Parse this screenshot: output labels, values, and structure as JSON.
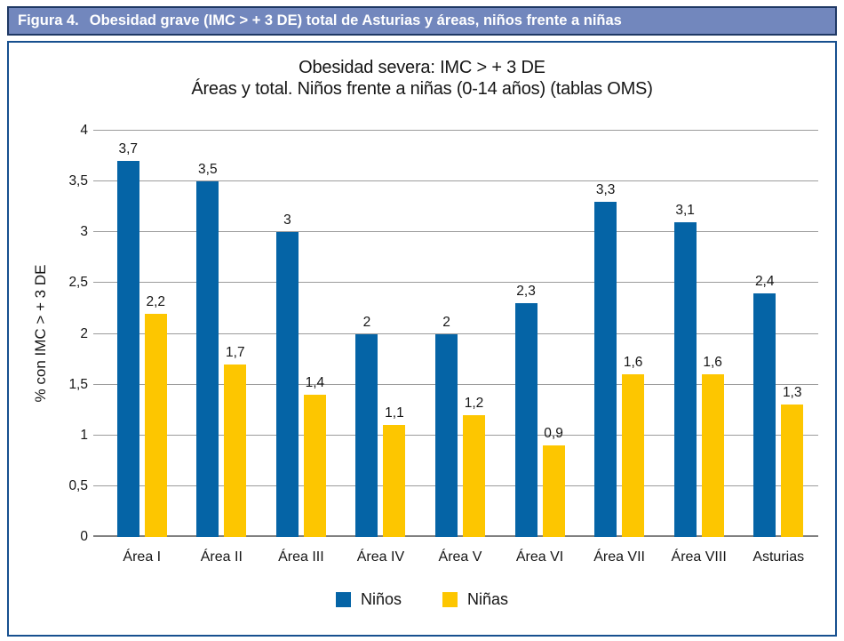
{
  "header": {
    "label": "Figura 4.",
    "title": "Obesidad grave (IMC > + 3 DE) total de Asturias y áreas, niños frente a niñas"
  },
  "colors": {
    "header_bg": "#7287BD",
    "header_border": "#1F3864",
    "box_border": "#17508F",
    "gridline": "#9C9C9C",
    "axis_line": "#808080",
    "text": "#1A1A1A"
  },
  "chart_data": {
    "type": "bar",
    "title_line1": "Obesidad severa: IMC > + 3 DE",
    "title_line2": "Áreas y total. Niños frente a niñas (0-14 años) (tablas OMS)",
    "ylabel": "% con IMC > + 3 DE",
    "xlabel": "",
    "ylim": [
      0,
      4
    ],
    "ytick_values": [
      0,
      0.5,
      1,
      1.5,
      2,
      2.5,
      3,
      3.5,
      4
    ],
    "ytick_labels": [
      "0",
      "0,5",
      "1",
      "1,5",
      "2",
      "2,5",
      "3",
      "3,5",
      "4"
    ],
    "grid": true,
    "legend_position": "bottom",
    "categories": [
      "Área I",
      "Área II",
      "Área III",
      "Área IV",
      "Área V",
      "Área VI",
      "Área VII",
      "Área VIII",
      "Asturias"
    ],
    "series": [
      {
        "name": "Niños",
        "color": "#0564A6",
        "values": [
          3.7,
          3.5,
          3,
          2,
          2,
          2.3,
          3.3,
          3.1,
          2.4
        ],
        "labels": [
          "3,7",
          "3,5",
          "3",
          "2",
          "2",
          "2,3",
          "3,3",
          "3,1",
          "2,4"
        ]
      },
      {
        "name": "Niñas",
        "color": "#FDC600",
        "values": [
          2.2,
          1.7,
          1.4,
          1.1,
          1.2,
          0.9,
          1.6,
          1.6,
          1.3
        ],
        "labels": [
          "2,2",
          "1,7",
          "1,4",
          "1,1",
          "1,2",
          "0,9",
          "1,6",
          "1,6",
          "1,3"
        ]
      }
    ]
  }
}
